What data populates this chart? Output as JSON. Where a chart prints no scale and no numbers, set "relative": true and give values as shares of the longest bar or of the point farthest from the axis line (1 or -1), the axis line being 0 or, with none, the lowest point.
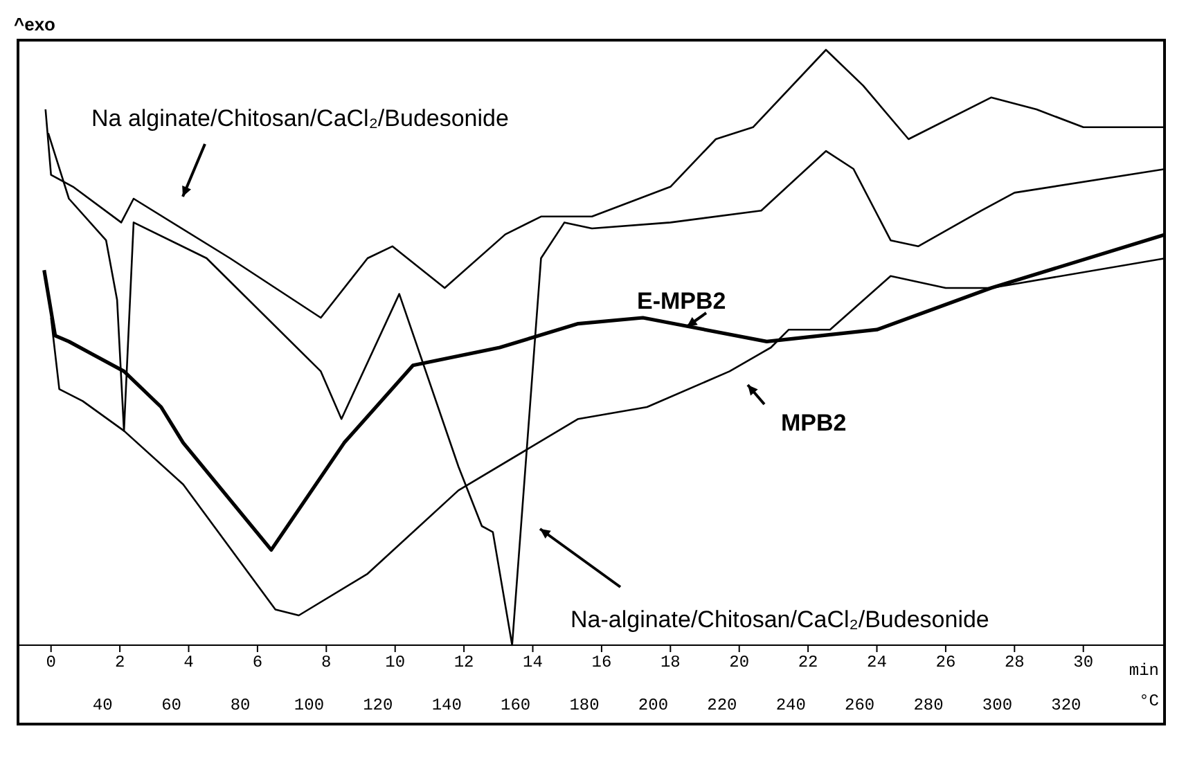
{
  "chart_data": {
    "type": "line",
    "relative": true,
    "ylabel": "^exo",
    "xlabel": "min",
    "x2label": "°C",
    "xlim": [
      -1,
      32.4
    ],
    "xticks": [
      0,
      2,
      4,
      6,
      8,
      10,
      12,
      14,
      16,
      18,
      20,
      22,
      24,
      26,
      28,
      30
    ],
    "x2lim": [
      15,
      349
    ],
    "x2ticks": [
      40,
      60,
      80,
      100,
      120,
      140,
      160,
      180,
      200,
      220,
      240,
      260,
      280,
      300,
      320
    ],
    "legend": false,
    "grid": false,
    "marker": "none",
    "line_style": "solid",
    "series": [
      {
        "name": "Na alginate/Chitosan/CaCl₂/Budesonide",
        "color": "#000000",
        "x": [
          -0.16,
          0.0,
          0.64,
          2.04,
          2.4,
          5.2,
          7.84,
          9.2,
          9.92,
          11.44,
          13.2,
          14.24,
          15.72,
          18.0,
          19.32,
          20.4,
          22.52,
          23.6,
          24.92,
          27.32,
          28.64,
          30.0,
          32.4
        ],
        "values": [
          0.9,
          0.79,
          0.77,
          0.71,
          0.75,
          0.65,
          0.55,
          0.65,
          0.67,
          0.6,
          0.69,
          0.72,
          0.72,
          0.77,
          0.85,
          0.87,
          1.0,
          0.94,
          0.85,
          0.92,
          0.9,
          0.87,
          0.87
        ]
      },
      {
        "name": "Na-alginate/Chitosan/CaCl₂/Budesonide",
        "color": "#000000",
        "x": [
          -0.08,
          0.52,
          1.6,
          1.92,
          2.12,
          2.4,
          4.52,
          7.84,
          8.44,
          10.12,
          11.84,
          12.52,
          12.84,
          13.4,
          13.84,
          14.24,
          14.92,
          15.72,
          18.0,
          20.64,
          22.52,
          23.32,
          24.4,
          25.2,
          27.04,
          28.0,
          32.4
        ],
        "values": [
          0.86,
          0.75,
          0.68,
          0.58,
          0.36,
          0.71,
          0.65,
          0.46,
          0.38,
          0.59,
          0.3,
          0.2,
          0.19,
          0.0,
          0.34,
          0.65,
          0.71,
          0.7,
          0.71,
          0.73,
          0.83,
          0.8,
          0.68,
          0.67,
          0.73,
          0.76,
          0.8
        ]
      },
      {
        "name": "E-MPB2",
        "color": "#000000",
        "x": [
          -0.2,
          0.12,
          0.52,
          2.12,
          3.2,
          3.84,
          6.4,
          8.52,
          10.52,
          13.04,
          15.32,
          17.2,
          20.8,
          24.0,
          27.32,
          32.4
        ],
        "values": [
          0.63,
          0.52,
          0.51,
          0.46,
          0.4,
          0.34,
          0.16,
          0.34,
          0.47,
          0.5,
          0.54,
          0.55,
          0.51,
          0.53,
          0.6,
          0.69
        ]
      },
      {
        "name": "MPB2",
        "color": "#000000",
        "x": [
          0.0,
          0.24,
          0.92,
          2.12,
          3.84,
          6.52,
          7.2,
          9.2,
          11.84,
          15.32,
          17.32,
          19.72,
          20.92,
          21.44,
          21.84,
          22.64,
          24.4,
          26.0,
          27.32,
          32.4
        ],
        "values": [
          0.55,
          0.43,
          0.41,
          0.36,
          0.27,
          0.06,
          0.05,
          0.12,
          0.26,
          0.38,
          0.4,
          0.46,
          0.5,
          0.53,
          0.53,
          0.53,
          0.62,
          0.6,
          0.6,
          0.65
        ]
      }
    ]
  }
}
